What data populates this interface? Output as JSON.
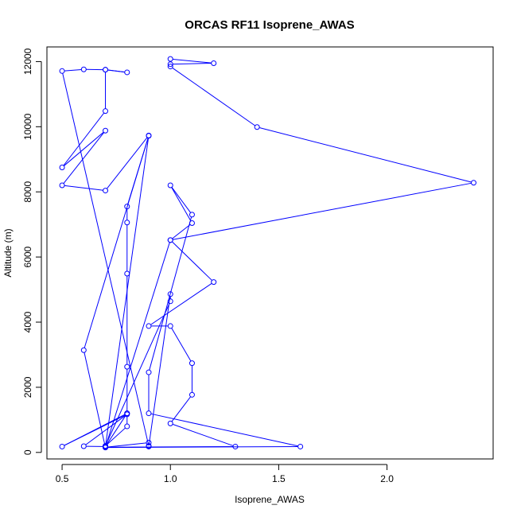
{
  "chart_data": {
    "type": "line",
    "title": "ORCAS RF11 Isoprene_AWAS",
    "xlabel": "Isoprene_AWAS",
    "ylabel": "Altitude (m)",
    "xlim": [
      0.43,
      2.49
    ],
    "ylim": [
      -200,
      12450
    ],
    "x_ticks": [
      0.5,
      1.0,
      1.5,
      2.0
    ],
    "x_tick_labels": [
      "0.5",
      "1.0",
      "1.5",
      "2.0"
    ],
    "y_ticks": [
      0,
      2000,
      4000,
      6000,
      8000,
      10000,
      12000
    ],
    "y_tick_labels": [
      "0",
      "2000",
      "4000",
      "6000",
      "8000",
      "10000",
      "12000"
    ],
    "grid": false,
    "series_color": "#0000ff",
    "series": [
      {
        "marker": "open-circle",
        "points": [
          [
            1.0,
            12080
          ],
          [
            1.2,
            11950
          ],
          [
            1.0,
            11920
          ],
          [
            1.0,
            11850
          ],
          [
            1.4,
            9990
          ],
          [
            2.4,
            8280
          ],
          [
            1.0,
            6520
          ],
          [
            1.1,
            7040
          ],
          [
            1.0,
            8200
          ],
          [
            1.1,
            7300
          ],
          [
            0.9,
            2460
          ],
          [
            0.9,
            1200
          ],
          [
            1.6,
            180
          ],
          [
            0.7,
            150
          ],
          [
            0.6,
            3140
          ],
          [
            0.9,
            9720
          ],
          [
            0.8,
            7550
          ],
          [
            0.8,
            7060
          ],
          [
            0.8,
            5490
          ],
          [
            0.8,
            2630
          ],
          [
            0.8,
            1200
          ],
          [
            0.7,
            180
          ],
          [
            0.9,
            9730
          ],
          [
            0.7,
            8040
          ],
          [
            0.5,
            8200
          ],
          [
            0.7,
            9880
          ],
          [
            0.5,
            8750
          ],
          [
            0.7,
            10480
          ],
          [
            0.7,
            11750
          ],
          [
            0.8,
            11670
          ],
          [
            0.7,
            11750
          ],
          [
            0.6,
            11760
          ],
          [
            0.5,
            11710
          ],
          [
            0.9,
            200
          ],
          [
            0.9,
            300
          ],
          [
            0.7,
            160
          ],
          [
            1.3,
            180
          ],
          [
            1.0,
            890
          ],
          [
            1.1,
            1770
          ],
          [
            1.1,
            2740
          ],
          [
            1.0,
            3880
          ],
          [
            0.9,
            3880
          ],
          [
            1.2,
            5230
          ],
          [
            1.0,
            6520
          ],
          [
            0.7,
            160
          ],
          [
            0.7,
            180
          ],
          [
            0.6,
            190
          ],
          [
            0.8,
            1170
          ],
          [
            0.5,
            180
          ],
          [
            0.8,
            1200
          ],
          [
            0.8,
            800
          ],
          [
            0.7,
            200
          ],
          [
            1.0,
            4640
          ],
          [
            1.0,
            4860
          ],
          [
            0.9,
            180
          ]
        ]
      }
    ]
  }
}
